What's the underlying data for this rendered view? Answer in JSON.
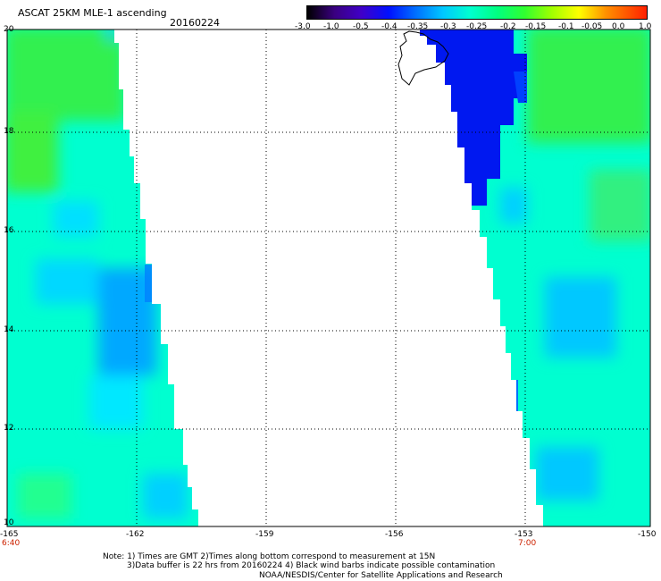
{
  "header": {
    "title": "ASCAT 25KM MLE-1 ascending",
    "date": "20160224"
  },
  "colorbar": {
    "labels": [
      "-3.0",
      "-1.0",
      "-0.5",
      "-0.4",
      "-0.35",
      "-0.3",
      "-0.25",
      "-0.2",
      "-0.15",
      "-0.1",
      "-0.05",
      "0.0",
      "1.0"
    ],
    "colors": [
      "#000000",
      "#3a0080",
      "#4000c8",
      "#0010ff",
      "#0070ff",
      "#00c8ff",
      "#00ffd0",
      "#00ff80",
      "#30ff30",
      "#a0ff00",
      "#ffff00",
      "#ff9000",
      "#ff2000"
    ]
  },
  "map": {
    "y_ticks": [
      "20",
      "18",
      "16",
      "14",
      "12",
      "10"
    ],
    "x_ticks": [
      "-165",
      "-162",
      "-159",
      "-156",
      "-153",
      "-150"
    ],
    "times": [
      "6:40",
      "7:00"
    ]
  },
  "footer": {
    "line1": "Note: 1) Times are GMT 2)Times along bottom correspond to measurement at 15N",
    "line2": "3)Data buffer is 22 hrs from 20160224 4) Black wind barbs indicate possible contamination",
    "line3": "NOAA/NESDIS/Center for Satellite Applications and Research"
  }
}
